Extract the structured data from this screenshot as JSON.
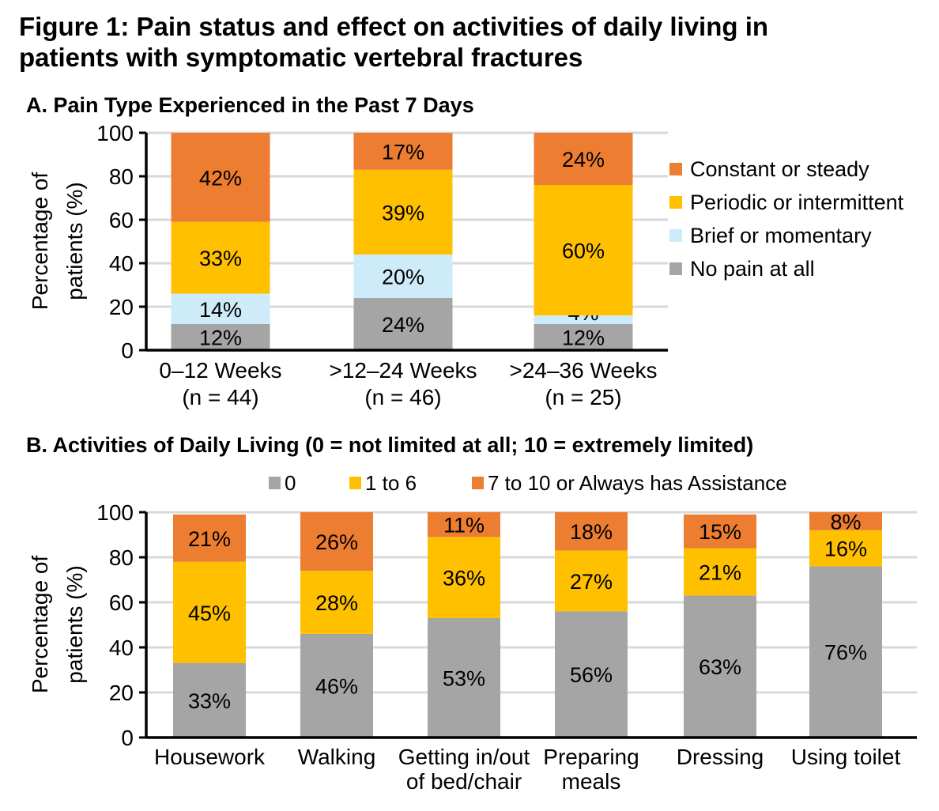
{
  "figure_title_line1": "Figure 1: Pain status and effect on activities of daily living in",
  "figure_title_line2": "patients with symptomatic vertebral fractures",
  "chart_data": [
    {
      "id": "A",
      "type": "bar",
      "stacked": true,
      "title": "A. Pain Type Experienced in the Past 7 Days",
      "ylabel_line1": "Percentage of",
      "ylabel_line2": "patients (%)",
      "ylim": [
        0,
        100
      ],
      "yticks": [
        0,
        20,
        40,
        60,
        80,
        100
      ],
      "grid": true,
      "legend_position": "right",
      "categories": [
        {
          "line1": "0–12 Weeks",
          "line2": "(n = 44)"
        },
        {
          "line1": ">12–24 Weeks",
          "line2": "(n = 46)"
        },
        {
          "line1": ">24–36 Weeks",
          "line2": "(n = 25)"
        }
      ],
      "series": [
        {
          "name": "No pain at all",
          "color": "#A5A5A5",
          "values": [
            12,
            24,
            12
          ],
          "labels": [
            "12%",
            "24%",
            "12%"
          ]
        },
        {
          "name": "Brief or momentary",
          "color": "#CDEBF8",
          "values": [
            14,
            20,
            4
          ],
          "labels": [
            "14%",
            "20%",
            "4%"
          ]
        },
        {
          "name": "Periodic or intermittent",
          "color": "#FFC000",
          "values": [
            33,
            39,
            60
          ],
          "labels": [
            "33%",
            "39%",
            "60%"
          ]
        },
        {
          "name": "Constant or steady",
          "color": "#ED7D31",
          "values": [
            42,
            17,
            24
          ],
          "labels": [
            "42%",
            "17%",
            "24%"
          ]
        }
      ],
      "legend_order": [
        "Constant or steady",
        "Periodic or intermittent",
        "Brief or momentary",
        "No pain at all"
      ]
    },
    {
      "id": "B",
      "type": "bar",
      "stacked": true,
      "title": "B. Activities of Daily Living (0 = not limited at all; 10 = extremely limited)",
      "ylabel_line1": "Percentage of",
      "ylabel_line2": "patients (%)",
      "ylim": [
        0,
        100
      ],
      "yticks": [
        0,
        20,
        40,
        60,
        80,
        100
      ],
      "grid": true,
      "legend_position": "top",
      "categories": [
        {
          "line1": "Housework",
          "line2": ""
        },
        {
          "line1": "Walking",
          "line2": ""
        },
        {
          "line1": "Getting in/out",
          "line2": "of bed/chair"
        },
        {
          "line1": "Preparing",
          "line2": "meals"
        },
        {
          "line1": "Dressing",
          "line2": ""
        },
        {
          "line1": "Using toilet",
          "line2": ""
        }
      ],
      "series": [
        {
          "name": "0",
          "color": "#A5A5A5",
          "values": [
            33,
            46,
            53,
            56,
            63,
            76
          ],
          "labels": [
            "33%",
            "46%",
            "53%",
            "56%",
            "63%",
            "76%"
          ]
        },
        {
          "name": "1 to 6",
          "color": "#FFC000",
          "values": [
            45,
            28,
            36,
            27,
            21,
            16
          ],
          "labels": [
            "45%",
            "28%",
            "36%",
            "27%",
            "21%",
            "16%"
          ]
        },
        {
          "name": "7 to 10 or Always has Assistance",
          "color": "#ED7D31",
          "values": [
            21,
            26,
            11,
            18,
            15,
            8
          ],
          "labels": [
            "21%",
            "26%",
            "11%",
            "18%",
            "15%",
            "8%"
          ]
        }
      ],
      "legend_order": [
        "0",
        "1 to 6",
        "7 to 10 or Always has Assistance"
      ]
    }
  ]
}
